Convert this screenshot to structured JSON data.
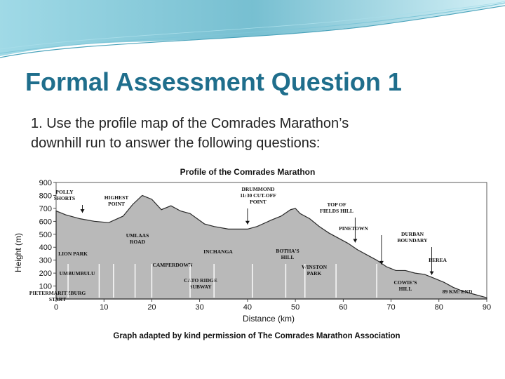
{
  "slide": {
    "title": "Formal Assessment Question 1",
    "body_line1": "1.  Use the profile map of the Comrades Marathon’s",
    "body_line2": "downhill run to answer the following questions:"
  },
  "figure": {
    "title": "Profile of the Comrades Marathon",
    "credit": "Graph adapted by kind permission of The Comrades Marathon Association",
    "colors": {
      "profile_fill": "#b9b9b9",
      "profile_stroke": "#2a2a2a",
      "title_color": "#1f6e8c",
      "swoosh_color": "#5fb4c9"
    }
  },
  "chart_data": {
    "type": "area",
    "title": "Profile of the Comrades Marathon",
    "xlabel": "Distance (km)",
    "ylabel": "Height (m)",
    "xlim": [
      0,
      90
    ],
    "ylim": [
      0,
      900
    ],
    "x_ticks": [
      "0",
      "10",
      "20",
      "30",
      "40",
      "50",
      "60",
      "70",
      "80",
      "90"
    ],
    "y_ticks": [
      "100",
      "200",
      "300",
      "400",
      "500",
      "600",
      "700",
      "800",
      "900"
    ],
    "series": [
      {
        "x": [
          0,
          2,
          5,
          8,
          11,
          14,
          16,
          18,
          20,
          22,
          24,
          26,
          28,
          31,
          33,
          36,
          38,
          40,
          42,
          45,
          47,
          49,
          50,
          51,
          53,
          55,
          57,
          59,
          61,
          63,
          65,
          67,
          69,
          71,
          73,
          75,
          77,
          79,
          81,
          83,
          85,
          87,
          89,
          90
        ],
        "y": [
          680,
          650,
          620,
          600,
          590,
          640,
          730,
          800,
          770,
          690,
          720,
          680,
          660,
          580,
          560,
          540,
          540,
          540,
          560,
          610,
          640,
          690,
          700,
          660,
          620,
          560,
          510,
          470,
          430,
          380,
          340,
          300,
          250,
          220,
          220,
          200,
          190,
          160,
          130,
          90,
          60,
          40,
          20,
          10
        ]
      }
    ],
    "places": [
      {
        "name": "POLLY",
        "name2": "SHORTS",
        "x": 5.5,
        "arrow_y": 650
      },
      {
        "name": "HIGHEST",
        "name2": "POINT",
        "x": 18,
        "arrow_y": 810
      },
      {
        "name": "DRUMMOND",
        "name2": "11:30 CUT-OFF",
        "name3": "POINT",
        "x": 40,
        "arrow_y": 560
      },
      {
        "name": "TOP OF",
        "name2": "FIELDS HILL",
        "x": 62.5,
        "arrow_y": 420
      },
      {
        "name": "PINETOWN",
        "x": 68,
        "arrow_y": 250
      },
      {
        "name": "DURBAN",
        "name2": "BOUNDARY",
        "x": 78.5,
        "arrow_y": 170
      },
      {
        "name": "BEREA",
        "x": 84
      },
      {
        "name": "UMLAAS",
        "name2": "ROAD",
        "x": 19
      },
      {
        "name": "INCHANGA",
        "x": 36
      },
      {
        "name": "BOTHA'S",
        "name2": "HILL",
        "x": 48
      },
      {
        "name": "WINSTON",
        "name2": "PARK",
        "x": 58
      },
      {
        "name": "COWIE'S",
        "name2": "HILL",
        "x": 69
      },
      {
        "name": "89 KM: END",
        "x": 85.5
      },
      {
        "name": "PIETERMARITZBURG",
        "name2": "START",
        "x": 1
      },
      {
        "name": "CAMPERDOWN",
        "x": 25
      },
      {
        "name": "CATO RIDGE",
        "name2": "SUBWAY",
        "x": 28
      },
      {
        "name": "LION PARK",
        "x": 10
      },
      {
        "name": "UMBUMBULU",
        "x": 11
      }
    ]
  }
}
